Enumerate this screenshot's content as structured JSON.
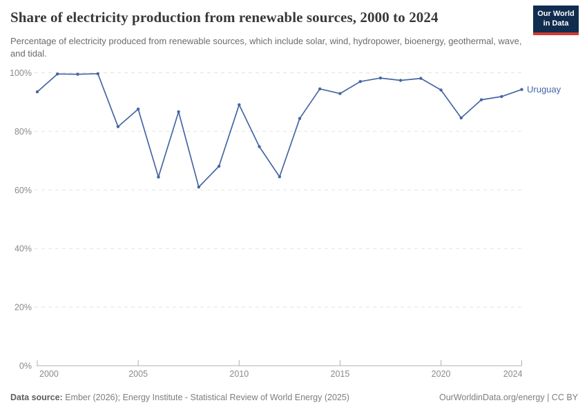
{
  "header": {
    "title": "Share of electricity production from renewable sources, 2000 to 2024",
    "subtitle": "Percentage of electricity produced from renewable sources, which include solar, wind, hydropower, bioenergy, geothermal, wave, and tidal.",
    "logo": {
      "line1": "Our World",
      "line2": "in Data",
      "bg_color": "#102d50",
      "accent_color": "#d23a2e"
    }
  },
  "chart_data": {
    "type": "line",
    "title": "Share of electricity production from renewable sources, 2000 to 2024",
    "x": [
      2000,
      2001,
      2002,
      2003,
      2004,
      2005,
      2006,
      2007,
      2008,
      2009,
      2010,
      2011,
      2012,
      2013,
      2014,
      2015,
      2016,
      2017,
      2018,
      2019,
      2020,
      2021,
      2022,
      2023,
      2024
    ],
    "series": [
      {
        "name": "Uruguay",
        "color": "#4566a3",
        "values": [
          93.5,
          99.6,
          99.5,
          99.7,
          81.6,
          87.6,
          64.4,
          86.7,
          61.0,
          68.1,
          89.1,
          74.8,
          64.5,
          84.4,
          94.5,
          92.9,
          97.0,
          98.2,
          97.4,
          98.1,
          94.1,
          84.6,
          90.8,
          91.9,
          94.3
        ]
      }
    ],
    "x_ticks": [
      2000,
      2005,
      2010,
      2015,
      2020,
      2024
    ],
    "y_ticks": [
      0,
      20,
      40,
      60,
      80,
      100
    ],
    "y_tick_suffix": "%",
    "xlim": [
      2000,
      2024
    ],
    "ylim": [
      0,
      100
    ],
    "grid": "horizontal-dashed",
    "grid_color": "#e2e2e2",
    "axis_color": "#b0b0b0",
    "tick_label_color": "#8a8a8a",
    "legend_position": "end-of-line-label"
  },
  "footer": {
    "datasource_label": "Data source:",
    "datasource_text": " Ember (2026); Energy Institute - Statistical Review of World Energy (2025)",
    "link_text": "OurWorldinData.org/energy | CC BY"
  }
}
